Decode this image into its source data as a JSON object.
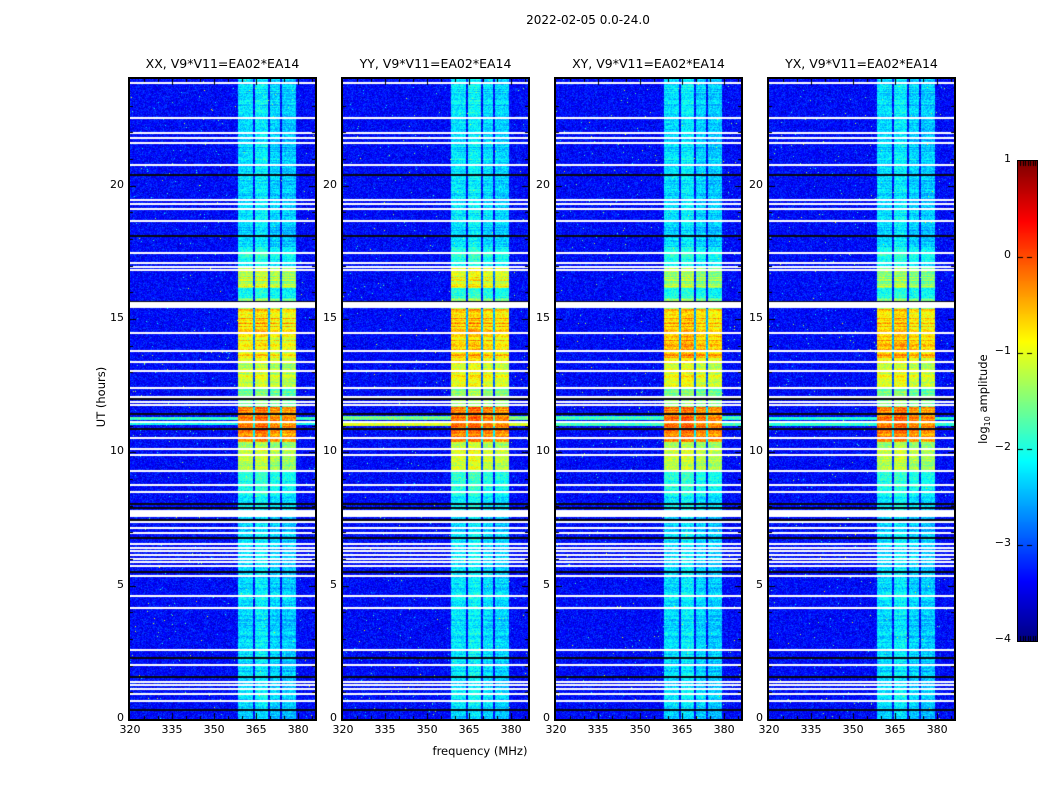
{
  "chart_data": {
    "type": "heatmap",
    "title": "2022-02-05 0.0-24.0",
    "xlabel": "frequency (MHz)",
    "ylabel": "UT (hours)",
    "x_range": [
      320,
      386
    ],
    "x_ticks": [
      320,
      335,
      350,
      365,
      380
    ],
    "x_minor_step": 5,
    "y_range": [
      0,
      24
    ],
    "y_ticks": [
      0,
      5,
      10,
      15,
      20
    ],
    "y_minor_step": 1,
    "background_level": -3.35,
    "colorbar": {
      "colormap": "jet",
      "vmin": -4,
      "vmax": 1,
      "tick_values": [
        1,
        0,
        -1,
        -2,
        -3,
        -4
      ],
      "tick_labels": [
        "1",
        "0",
        "−1",
        "−2",
        "−3",
        "−4"
      ],
      "label_prefix": "log",
      "label_sub": "10",
      "label_suffix": " amplitude"
    },
    "band": {
      "f_min": 358.4,
      "f_max": 379.2,
      "columns": [
        [
          358.4,
          364.0
        ],
        [
          364.6,
          369.2
        ],
        [
          369.9,
          373.6
        ],
        [
          374.1,
          379.2
        ]
      ],
      "col_offsets": [
        0,
        0.1,
        -0.05,
        -0.1
      ],
      "gap_drop": 1.9
    },
    "white_lines": [
      23.88,
      22.55,
      22.0,
      21.8,
      21.62,
      20.8,
      19.5,
      19.32,
      19.15,
      18.7,
      17.5,
      17.12,
      16.98,
      16.84,
      14.5,
      13.82,
      13.4,
      13.05,
      12.42,
      12.1,
      11.92,
      11.78,
      11.15,
      10.55,
      10.15,
      9.9,
      9.32,
      8.8,
      8.52,
      7.4,
      7.2,
      7.0,
      6.6,
      6.45,
      6.32,
      6.18,
      6.02,
      5.9,
      5.77,
      5.4,
      4.62,
      4.2,
      2.62,
      2.06,
      1.42,
      1.3,
      1.16,
      0.94,
      0.71
    ],
    "white_bands": [
      [
        15.42,
        15.62
      ],
      [
        7.6,
        7.82
      ]
    ],
    "black_lines": [
      20.42,
      18.12,
      15.66,
      12.02,
      11.45,
      10.9,
      8.1,
      7.92,
      7.5,
      6.8,
      5.52,
      2.3,
      1.6,
      0.34
    ],
    "panels": [
      {
        "label": "XX",
        "title": "XX, V9*V11=EA02*EA14",
        "band_segments": [
          {
            "t0": 0,
            "t1": 8.35,
            "level": -2.3,
            "striping": 0.18
          },
          {
            "t0": 8.35,
            "t1": 9.35,
            "level": -2.0,
            "striping": 0.18
          },
          {
            "t0": 9.35,
            "t1": 10.4,
            "level": -1.25,
            "striping": 0.25
          },
          {
            "t0": 10.4,
            "t1": 11.7,
            "level": -0.3,
            "striping": 0.22
          },
          {
            "t0": 11.7,
            "t1": 12.4,
            "level": -1.65,
            "striping": 0.2
          },
          {
            "t0": 12.4,
            "t1": 13.55,
            "level": -1.2,
            "striping": 0.25
          },
          {
            "t0": 13.55,
            "t1": 14.35,
            "level": -0.9,
            "striping": 0.32
          },
          {
            "t0": 14.35,
            "t1": 15.38,
            "level": -0.6,
            "striping": 0.38
          },
          {
            "t0": 15.38,
            "t1": 15.8,
            "level": -1.5,
            "striping": 0.2
          },
          {
            "t0": 15.8,
            "t1": 16.15,
            "level": -2.0,
            "striping": 0.18
          },
          {
            "t0": 16.15,
            "t1": 16.9,
            "level": -1.15,
            "striping": 0.38
          },
          {
            "t0": 16.9,
            "t1": 17.7,
            "level": -2.05,
            "striping": 0.18
          },
          {
            "t0": 17.7,
            "t1": 24,
            "level": -2.3,
            "striping": 0.18
          }
        ],
        "streaks": [
          {
            "t0": 11.02,
            "t1": 11.12,
            "level": -2.05
          },
          {
            "t0": 11.22,
            "t1": 11.32,
            "level": -1.9
          }
        ]
      },
      {
        "label": "YY",
        "title": "YY, V9*V11=EA02*EA14",
        "band_segments": [
          {
            "t0": 0,
            "t1": 8.35,
            "level": -2.25,
            "striping": 0.18
          },
          {
            "t0": 8.35,
            "t1": 9.35,
            "level": -1.95,
            "striping": 0.18
          },
          {
            "t0": 9.35,
            "t1": 10.4,
            "level": -1.1,
            "striping": 0.25
          },
          {
            "t0": 10.4,
            "t1": 11.7,
            "level": -0.25,
            "striping": 0.22
          },
          {
            "t0": 11.7,
            "t1": 12.4,
            "level": -1.45,
            "striping": 0.2
          },
          {
            "t0": 12.4,
            "t1": 13.55,
            "level": -1.0,
            "striping": 0.25
          },
          {
            "t0": 13.55,
            "t1": 14.35,
            "level": -0.72,
            "striping": 0.32
          },
          {
            "t0": 14.35,
            "t1": 15.38,
            "level": -0.5,
            "striping": 0.35
          },
          {
            "t0": 15.38,
            "t1": 15.8,
            "level": -1.45,
            "striping": 0.2
          },
          {
            "t0": 15.8,
            "t1": 16.15,
            "level": -1.9,
            "striping": 0.18
          },
          {
            "t0": 16.15,
            "t1": 16.9,
            "level": -0.9,
            "striping": 0.32
          },
          {
            "t0": 16.9,
            "t1": 17.7,
            "level": -2.0,
            "striping": 0.18
          },
          {
            "t0": 17.7,
            "t1": 24,
            "level": -2.25,
            "striping": 0.18
          }
        ],
        "streaks": [
          {
            "t0": 11.0,
            "t1": 11.12,
            "level": -1.05
          },
          {
            "t0": 11.22,
            "t1": 11.35,
            "level": -1.6
          }
        ]
      },
      {
        "label": "XY",
        "title": "XY, V9*V11=EA02*EA14",
        "band_segments": [
          {
            "t0": 0,
            "t1": 8.35,
            "level": -2.3,
            "striping": 0.18
          },
          {
            "t0": 8.35,
            "t1": 9.35,
            "level": -2.0,
            "striping": 0.18
          },
          {
            "t0": 9.35,
            "t1": 10.4,
            "level": -1.2,
            "striping": 0.25
          },
          {
            "t0": 10.4,
            "t1": 11.7,
            "level": -0.25,
            "striping": 0.22
          },
          {
            "t0": 11.7,
            "t1": 12.4,
            "level": -1.55,
            "striping": 0.2
          },
          {
            "t0": 12.4,
            "t1": 13.55,
            "level": -1.05,
            "striping": 0.25
          },
          {
            "t0": 13.55,
            "t1": 15.38,
            "level": -0.55,
            "striping": 0.3
          },
          {
            "t0": 15.38,
            "t1": 15.8,
            "level": -1.5,
            "striping": 0.2
          },
          {
            "t0": 15.8,
            "t1": 16.15,
            "level": -1.95,
            "striping": 0.18
          },
          {
            "t0": 16.15,
            "t1": 16.9,
            "level": -1.3,
            "striping": 0.32
          },
          {
            "t0": 16.9,
            "t1": 17.7,
            "level": -2.05,
            "striping": 0.18
          },
          {
            "t0": 17.7,
            "t1": 24,
            "level": -2.3,
            "striping": 0.18
          }
        ],
        "streaks": [
          {
            "t0": 11.0,
            "t1": 11.12,
            "level": -1.8
          },
          {
            "t0": 11.22,
            "t1": 11.35,
            "level": -1.9
          }
        ]
      },
      {
        "label": "YX",
        "title": "YX, V9*V11=EA02*EA14",
        "band_segments": [
          {
            "t0": 0,
            "t1": 8.35,
            "level": -2.3,
            "striping": 0.18
          },
          {
            "t0": 8.35,
            "t1": 9.35,
            "level": -2.0,
            "striping": 0.18
          },
          {
            "t0": 9.35,
            "t1": 10.4,
            "level": -1.25,
            "striping": 0.25
          },
          {
            "t0": 10.4,
            "t1": 11.7,
            "level": -0.28,
            "striping": 0.22
          },
          {
            "t0": 11.7,
            "t1": 12.4,
            "level": -1.6,
            "striping": 0.2
          },
          {
            "t0": 12.4,
            "t1": 13.55,
            "level": -1.1,
            "striping": 0.25
          },
          {
            "t0": 13.55,
            "t1": 15.38,
            "level": -0.6,
            "striping": 0.3
          },
          {
            "t0": 15.38,
            "t1": 15.8,
            "level": -1.5,
            "striping": 0.2
          },
          {
            "t0": 15.8,
            "t1": 16.15,
            "level": -1.95,
            "striping": 0.18
          },
          {
            "t0": 16.15,
            "t1": 16.9,
            "level": -1.35,
            "striping": 0.32
          },
          {
            "t0": 16.9,
            "t1": 17.7,
            "level": -2.05,
            "striping": 0.18
          },
          {
            "t0": 17.7,
            "t1": 24,
            "level": -2.3,
            "striping": 0.18
          }
        ],
        "streaks": [
          {
            "t0": 11.0,
            "t1": 11.12,
            "level": -1.9
          },
          {
            "t0": 11.22,
            "t1": 11.32,
            "level": -2.0
          }
        ]
      }
    ]
  }
}
